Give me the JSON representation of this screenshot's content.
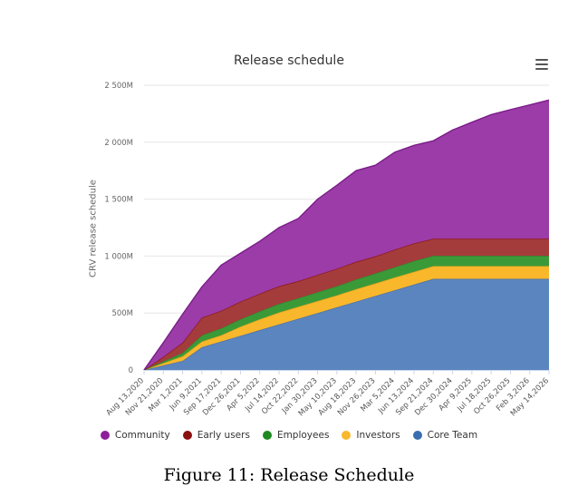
{
  "chart_data": {
    "type": "area",
    "stacked": true,
    "title": "Release schedule",
    "xlabel": "",
    "ylabel": "CRV release schedule",
    "ylim": [
      0,
      2500
    ],
    "yticks": [
      0,
      500,
      1000,
      1500,
      2000,
      2500
    ],
    "ytick_labels": [
      "0",
      "500M",
      "1 000M",
      "1 500M",
      "2 000M",
      "2 500M"
    ],
    "grid": true,
    "legend_position": "bottom",
    "categories": [
      "Aug 13,2020",
      "Nov 21,2020",
      "Mar 1,2021",
      "Jun 9,2021",
      "Sep 17,2021",
      "Dec 26,2021",
      "Apr 5,2022",
      "Jul 14,2022",
      "Oct 22,2022",
      "Jan 30,2023",
      "May 10,2023",
      "Aug 18,2023",
      "Nov 26,2023",
      "Mar 5,2024",
      "Jun 13,2024",
      "Sep 21,2024",
      "Dec 30,2024",
      "Apr 9,2025",
      "Jul 18,2025",
      "Oct 26,2025",
      "Feb 3,2026",
      "May 14,2026"
    ],
    "series": [
      {
        "name": "Core Team",
        "color": "#5b85be",
        "values": [
          0,
          40,
          80,
          200,
          250,
          300,
          350,
          400,
          450,
          500,
          550,
          600,
          650,
          700,
          750,
          800,
          800,
          800,
          800,
          800,
          800,
          800
        ]
      },
      {
        "name": "Investors",
        "color": "#f9b72b",
        "values": [
          0,
          20,
          40,
          50,
          55,
          80,
          95,
          105,
          105,
          105,
          105,
          110,
          110,
          112,
          112,
          112,
          112,
          112,
          112,
          112,
          112,
          112
        ]
      },
      {
        "name": "Employees",
        "color": "#3b9a38",
        "values": [
          0,
          15,
          30,
          55,
          60,
          65,
          70,
          75,
          75,
          78,
          80,
          85,
          88,
          90,
          95,
          90,
          90,
          90,
          90,
          90,
          90,
          90
        ]
      },
      {
        "name": "Early users",
        "color": "#a43c3b",
        "values": [
          0,
          40,
          90,
          155,
          155,
          155,
          155,
          155,
          150,
          152,
          154,
          155,
          150,
          155,
          155,
          150,
          150,
          150,
          150,
          150,
          150,
          150
        ]
      },
      {
        "name": "Community",
        "color": "#9c3ca8",
        "values": [
          0,
          125,
          250,
          270,
          400,
          425,
          460,
          515,
          550,
          665,
          733,
          800,
          800,
          855,
          860,
          860,
          955,
          1023,
          1090,
          1134,
          1175,
          1218
        ]
      }
    ],
    "legend_order": [
      "Community",
      "Early users",
      "Employees",
      "Investors",
      "Core Team"
    ],
    "line_colors": {
      "Core Team": "#4a72a8",
      "Investors": "#e6a21c",
      "Employees": "#2e8a2c",
      "Early users": "#8c1818",
      "Community": "#7a1d88"
    }
  },
  "menu_icon": "hamburger-menu-icon",
  "caption": "Figure 11: Release Schedule"
}
